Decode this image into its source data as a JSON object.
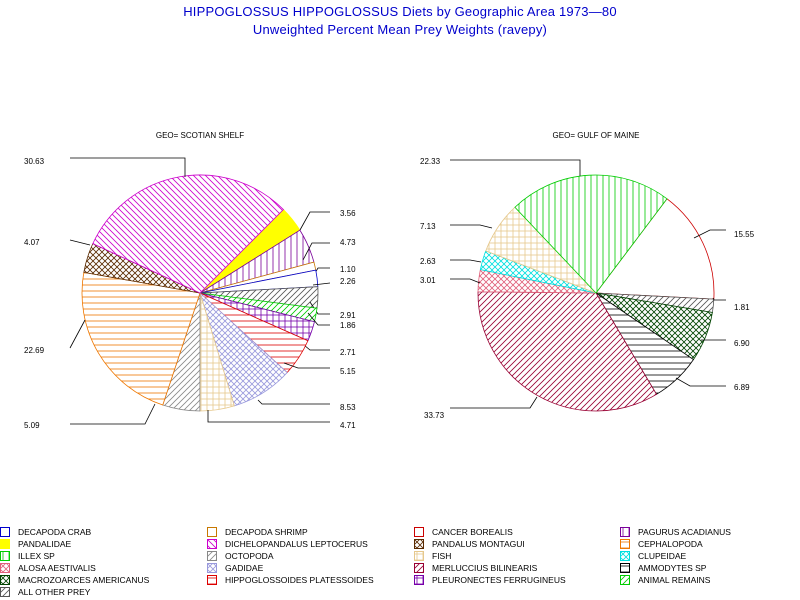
{
  "title": "HIPPOGLOSSUS HIPPOGLOSSUS Diets by Geographic Area 1973—80",
  "subtitle": "Unweighted Percent Mean Prey Weights (ravepy)",
  "categories": [
    {
      "key": "decapoda_crab",
      "label": "DECAPODA CRAB",
      "color": "#0000cc",
      "pattern": "none"
    },
    {
      "key": "decapoda_shrimp",
      "label": "DECAPODA SHRIMP",
      "color": "#c87800",
      "pattern": "none"
    },
    {
      "key": "cancer_borealis",
      "label": "CANCER BOREALIS",
      "color": "#cc0000",
      "pattern": "none"
    },
    {
      "key": "pagurus_acadianus",
      "label": "PAGURUS ACADIANUS",
      "color": "#7a0099",
      "pattern": "vertical"
    },
    {
      "key": "pandalidae",
      "label": "PANDALIDAE",
      "color": "#ffff00",
      "pattern": "solid"
    },
    {
      "key": "dichelopandalus",
      "label": "DICHELOPANDALUS LEPTOCERUS",
      "color": "#cc00cc",
      "pattern": "diag-down"
    },
    {
      "key": "pandalus_montagui",
      "label": "PANDALUS MONTAGUI",
      "color": "#5a2a00",
      "pattern": "crosshatch-diag"
    },
    {
      "key": "cephalopoda",
      "label": "CEPHALOPODA",
      "color": "#ee7700",
      "pattern": "horizontal"
    },
    {
      "key": "illex_sp",
      "label": "ILLEX SP",
      "color": "#00cc00",
      "pattern": "vertical"
    },
    {
      "key": "octopoda",
      "label": "OCTOPODA",
      "color": "#888888",
      "pattern": "diag-up"
    },
    {
      "key": "fish",
      "label": "FISH",
      "color": "#e6c88c",
      "pattern": "grid"
    },
    {
      "key": "clupeidae",
      "label": "CLUPEIDAE",
      "color": "#00e0e0",
      "pattern": "crosshatch-diag"
    },
    {
      "key": "alosa_aestivalis",
      "label": "ALOSA AESTIVALIS",
      "color": "#e0607a",
      "pattern": "crosshatch-diag"
    },
    {
      "key": "gadidae",
      "label": "GADIDAE",
      "color": "#9999dd",
      "pattern": "crosshatch-diag"
    },
    {
      "key": "merluccius",
      "label": "MERLUCCIUS BILINEARIS",
      "color": "#990033",
      "pattern": "diag-up"
    },
    {
      "key": "ammodytes",
      "label": "AMMODYTES SP",
      "color": "#000000",
      "pattern": "horizontal"
    },
    {
      "key": "macrozoarces",
      "label": "MACROZOARCES AMERICANUS",
      "color": "#004400",
      "pattern": "crosshatch-diag"
    },
    {
      "key": "hippoglossoides",
      "label": "HIPPOGLOSSOIDES PLATESSOIDES",
      "color": "#dd0000",
      "pattern": "horizontal"
    },
    {
      "key": "pleuronectes",
      "label": "PLEURONECTES FERRUGINEUS",
      "color": "#7700aa",
      "pattern": "grid"
    },
    {
      "key": "animal_remains",
      "label": "ANIMAL REMAINS",
      "color": "#00cc00",
      "pattern": "diag-up"
    },
    {
      "key": "all_other",
      "label": "ALL OTHER PREY",
      "color": "#555555",
      "pattern": "diag-up"
    }
  ],
  "chart_data": [
    {
      "type": "pie",
      "title": "GEO= SCOTIAN SHELF",
      "slices": [
        {
          "category": "pandalidae",
          "value": 3.56,
          "label": "3.56"
        },
        {
          "category": "pagurus_acadianus",
          "value": 4.73,
          "label": "4.73"
        },
        {
          "category": "decapoda_shrimp",
          "value": 1.1,
          "label": "1.10"
        },
        {
          "category": "decapoda_crab",
          "value": 2.26,
          "label": "2.26"
        },
        {
          "category": "all_other",
          "value": 2.91,
          "label": "2.91"
        },
        {
          "category": "animal_remains",
          "value": 1.86,
          "label": "1.86"
        },
        {
          "category": "pleuronectes",
          "value": 2.71,
          "label": "2.71"
        },
        {
          "category": "hippoglossoides",
          "value": 5.15,
          "label": "5.15"
        },
        {
          "category": "gadidae",
          "value": 8.53,
          "label": "8.53"
        },
        {
          "category": "fish",
          "value": 4.71,
          "label": "4.71"
        },
        {
          "category": "octopoda",
          "value": 5.09,
          "label": "5.09"
        },
        {
          "category": "cephalopoda",
          "value": 22.69,
          "label": "22.69"
        },
        {
          "category": "pandalus_montagui",
          "value": 4.07,
          "label": "4.07"
        },
        {
          "category": "dichelopandalus",
          "value": 30.63,
          "label": "30.63"
        }
      ]
    },
    {
      "type": "pie",
      "title": "GEO= GULF OF MAINE",
      "slices": [
        {
          "category": "cancer_borealis",
          "value": 15.55,
          "label": "15.55"
        },
        {
          "category": "all_other",
          "value": 1.81,
          "label": "1.81"
        },
        {
          "category": "macrozoarces",
          "value": 6.9,
          "label": "6.90"
        },
        {
          "category": "ammodytes",
          "value": 6.89,
          "label": "6.89"
        },
        {
          "category": "merluccius",
          "value": 33.73,
          "label": "33.73"
        },
        {
          "category": "alosa_aestivalis",
          "value": 3.01,
          "label": "3.01"
        },
        {
          "category": "clupeidae",
          "value": 2.63,
          "label": "2.63"
        },
        {
          "category": "fish",
          "value": 7.13,
          "label": "7.13"
        },
        {
          "category": "illex_sp",
          "value": 22.33,
          "label": "22.33"
        }
      ]
    }
  ]
}
